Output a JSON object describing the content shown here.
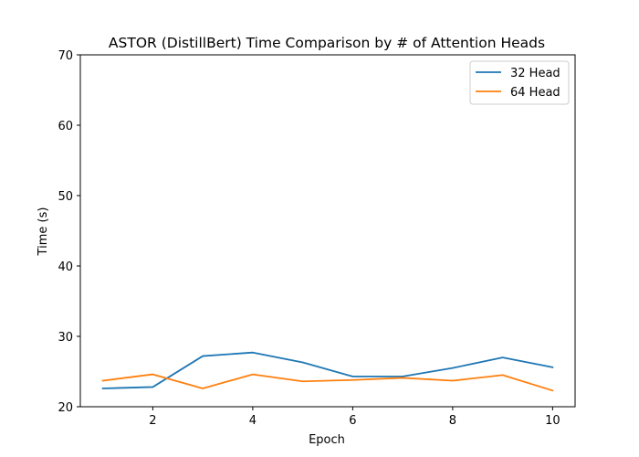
{
  "chart_data": {
    "type": "line",
    "title": "ASTOR (DistillBert) Time Comparison by # of Attention Heads",
    "xlabel": "Epoch",
    "ylabel": "Time (s)",
    "xlim": [
      0.55,
      10.45
    ],
    "ylim": [
      20,
      70
    ],
    "xticks": [
      2,
      4,
      6,
      8,
      10
    ],
    "yticks": [
      20,
      30,
      40,
      50,
      60,
      70
    ],
    "grid": false,
    "legend_position": "top-right",
    "x": [
      1,
      2,
      3,
      4,
      5,
      6,
      7,
      8,
      9,
      10
    ],
    "series": [
      {
        "name": "32 Head",
        "color": "#1f77b4",
        "values": [
          22.6,
          22.8,
          27.2,
          27.7,
          26.3,
          24.3,
          24.3,
          25.5,
          27.0,
          25.6
        ]
      },
      {
        "name": "64 Head",
        "color": "#ff7f0e",
        "values": [
          23.7,
          24.6,
          22.6,
          24.6,
          23.6,
          23.8,
          24.1,
          23.7,
          24.5,
          22.3
        ]
      }
    ]
  }
}
